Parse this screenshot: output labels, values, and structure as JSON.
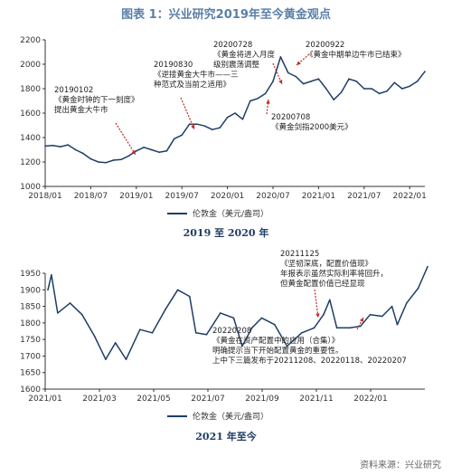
{
  "title": "图表 1：兴业研究2019年至今黄金观点",
  "source": "资料来源：兴业研究",
  "chart_data": [
    {
      "type": "line",
      "caption": "2019 至 2020 年",
      "legend": "伦敦金（美元/盎司）",
      "x_ticks": [
        "2018/01",
        "2018/07",
        "2019/01",
        "2019/07",
        "2020/01",
        "2020/07",
        "2021/01",
        "2021/07",
        "2022/01"
      ],
      "xlim": [
        "2018/01",
        "2022/03"
      ],
      "ylim": [
        1000,
        2200
      ],
      "y_ticks": [
        1000,
        1200,
        1400,
        1600,
        1800,
        2000,
        2200
      ],
      "series": [
        {
          "values": [
            [
              "2018/01",
              1330
            ],
            [
              "2018/02",
              1335
            ],
            [
              "2018/03",
              1325
            ],
            [
              "2018/04",
              1340
            ],
            [
              "2018/05",
              1300
            ],
            [
              "2018/06",
              1270
            ],
            [
              "2018/07",
              1225
            ],
            [
              "2018/08",
              1200
            ],
            [
              "2018/09",
              1195
            ],
            [
              "2018/10",
              1215
            ],
            [
              "2018/11",
              1220
            ],
            [
              "2018/12",
              1250
            ],
            [
              "2019/01",
              1290
            ],
            [
              "2019/02",
              1320
            ],
            [
              "2019/03",
              1300
            ],
            [
              "2019/04",
              1280
            ],
            [
              "2019/05",
              1290
            ],
            [
              "2019/06",
              1390
            ],
            [
              "2019/07",
              1420
            ],
            [
              "2019/08",
              1510
            ],
            [
              "2019/09",
              1510
            ],
            [
              "2019/10",
              1495
            ],
            [
              "2019/11",
              1465
            ],
            [
              "2019/12",
              1480
            ],
            [
              "2020/01",
              1565
            ],
            [
              "2020/02",
              1600
            ],
            [
              "2020/03",
              1550
            ],
            [
              "2020/04",
              1700
            ],
            [
              "2020/05",
              1720
            ],
            [
              "2020/06",
              1760
            ],
            [
              "2020/07",
              1860
            ],
            [
              "2020/08",
              2060
            ],
            [
              "2020/09",
              1930
            ],
            [
              "2020/10",
              1900
            ],
            [
              "2020/11",
              1840
            ],
            [
              "2020/12",
              1860
            ],
            [
              "2021/01",
              1880
            ],
            [
              "2021/02",
              1800
            ],
            [
              "2021/03",
              1710
            ],
            [
              "2021/04",
              1770
            ],
            [
              "2021/05",
              1880
            ],
            [
              "2021/06",
              1860
            ],
            [
              "2021/07",
              1800
            ],
            [
              "2021/08",
              1800
            ],
            [
              "2021/09",
              1760
            ],
            [
              "2021/10",
              1780
            ],
            [
              "2021/11",
              1850
            ],
            [
              "2021/12",
              1800
            ],
            [
              "2022/01",
              1820
            ],
            [
              "2022/02",
              1860
            ],
            [
              "2022/03",
              1940
            ]
          ]
        }
      ],
      "annotations": [
        {
          "date": "20190102",
          "text": [
            "《黄金时钟的下一刻度》",
            "提出黄金大牛市"
          ]
        },
        {
          "date": "20190830",
          "text": [
            "《逆接黄金大牛市——三",
            "种范式及当前之适用》"
          ]
        },
        {
          "date": "20200728",
          "text": [
            "《黄金将进入月度",
            "级别震荡调整"
          ]
        },
        {
          "date": "20200922",
          "text": [
            "《黄金中期单边牛市已结束》"
          ]
        },
        {
          "date": "20200708",
          "text": [
            "《黄金剑指2000美元》"
          ]
        }
      ]
    },
    {
      "type": "line",
      "caption": "2021 年至今",
      "legend": "伦敦金（美元/盎司）",
      "x_ticks": [
        "2021/01",
        "2021/03",
        "2021/05",
        "2021/07",
        "2021/09",
        "2021/11",
        "2022/01"
      ],
      "xlim": [
        "2021/01",
        "2022/03"
      ],
      "ylim": [
        1600,
        1950
      ],
      "y_ticks": [
        1600,
        1650,
        1700,
        1750,
        1800,
        1850,
        1900,
        1950
      ],
      "series": [
        {
          "values": [
            [
              "2021/01/04",
              1900
            ],
            [
              "2021/01/08",
              1945
            ],
            [
              "2021/01/15",
              1830
            ],
            [
              "2021/01/29",
              1860
            ],
            [
              "2021/02/12",
              1825
            ],
            [
              "2021/02/26",
              1760
            ],
            [
              "2021/03/08",
              1690
            ],
            [
              "2021/03/19",
              1740
            ],
            [
              "2021/03/31",
              1690
            ],
            [
              "2021/04/16",
              1780
            ],
            [
              "2021/04/30",
              1770
            ],
            [
              "2021/05/14",
              1840
            ],
            [
              "2021/05/28",
              1900
            ],
            [
              "2021/06/11",
              1880
            ],
            [
              "2021/06/18",
              1770
            ],
            [
              "2021/06/30",
              1765
            ],
            [
              "2021/07/15",
              1830
            ],
            [
              "2021/07/30",
              1815
            ],
            [
              "2021/08/09",
              1730
            ],
            [
              "2021/08/20",
              1785
            ],
            [
              "2021/08/31",
              1815
            ],
            [
              "2021/09/15",
              1795
            ],
            [
              "2021/09/29",
              1730
            ],
            [
              "2021/10/15",
              1770
            ],
            [
              "2021/10/29",
              1785
            ],
            [
              "2021/11/09",
              1825
            ],
            [
              "2021/11/16",
              1870
            ],
            [
              "2021/11/24",
              1785
            ],
            [
              "2021/12/08",
              1785
            ],
            [
              "2021/12/20",
              1790
            ],
            [
              "2021/12/31",
              1825
            ],
            [
              "2022/01/14",
              1820
            ],
            [
              "2022/01/25",
              1850
            ],
            [
              "2022/01/31",
              1795
            ],
            [
              "2022/02/11",
              1860
            ],
            [
              "2022/02/24",
              1905
            ],
            [
              "2022/03/04",
              1970
            ]
          ]
        }
      ],
      "annotations": [
        {
          "date": "20211125",
          "text": [
            "《坚韧深底，配置价值现》",
            "年报表示虽然实际利率将回升，",
            "但黄金配置价值已经显现"
          ]
        },
        {
          "date": "20220208",
          "text": [
            "《黄金在资产配置中的应用（合集）》",
            "明确提示当下开始配置黄金的重要性。",
            "上中下三篇发布于20211208、20220118、20220207"
          ]
        }
      ]
    }
  ]
}
